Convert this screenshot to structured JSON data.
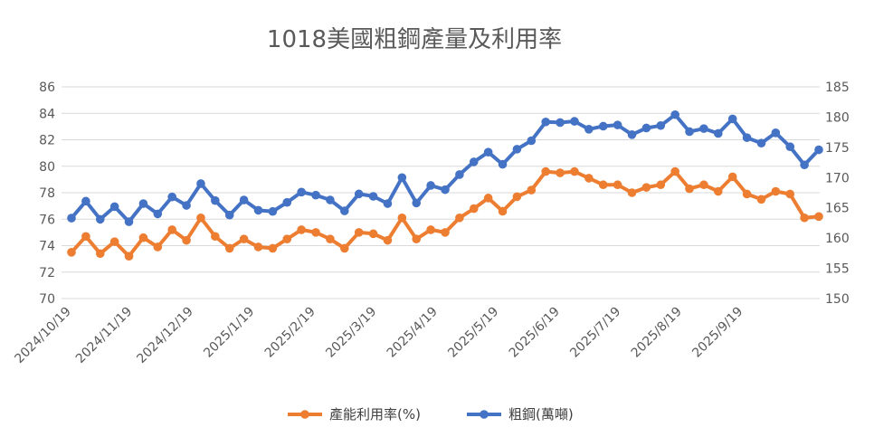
{
  "chart_data": {
    "type": "line",
    "title": "1018美國粗鋼產量及利用率",
    "x_tick_labels": [
      "2024/10/19",
      "2024/11/19",
      "2024/12/19",
      "2025/1/19",
      "2025/2/19",
      "2025/3/19",
      "2025/4/19",
      "2025/5/19",
      "2025/6/19",
      "2025/7/19",
      "2025/8/19",
      "2025/9/19"
    ],
    "y_left": {
      "ticks": [
        "70",
        "72",
        "74",
        "76",
        "78",
        "80",
        "82",
        "84",
        "86"
      ],
      "ylim": [
        70,
        86
      ]
    },
    "y_right": {
      "ticks": [
        "150",
        "155",
        "160",
        "165",
        "170",
        "175",
        "180",
        "185"
      ],
      "ylim": [
        150,
        185
      ]
    },
    "legend_position": "bottom",
    "grid": true,
    "series": [
      {
        "name": "產能利用率(%)",
        "axis": "left",
        "color": "#ED7D31",
        "values": [
          73.5,
          74.7,
          73.4,
          74.3,
          73.2,
          74.6,
          73.9,
          75.2,
          74.4,
          76.1,
          74.7,
          73.8,
          74.5,
          73.9,
          73.8,
          74.5,
          75.2,
          75.0,
          74.5,
          73.8,
          75.0,
          74.9,
          74.4,
          76.1,
          74.5,
          75.2,
          75.0,
          76.1,
          76.8,
          77.6,
          76.6,
          77.7,
          78.2,
          79.6,
          79.5,
          79.6,
          79.1,
          78.6,
          78.6,
          78.0,
          78.4,
          78.6,
          79.6,
          78.3,
          78.6,
          78.1,
          79.2,
          77.9,
          77.5,
          78.1,
          77.9,
          76.1,
          76.2
        ]
      },
      {
        "name": "粗鋼(萬噸)",
        "axis": "right",
        "color": "#4472C4",
        "values": [
          163.3,
          166.1,
          163.1,
          165.2,
          162.7,
          165.7,
          164.0,
          166.8,
          165.4,
          169.0,
          166.2,
          163.8,
          166.3,
          164.6,
          164.4,
          165.9,
          167.6,
          167.1,
          166.3,
          164.5,
          167.3,
          166.9,
          165.7,
          170.0,
          165.8,
          168.7,
          168.0,
          170.5,
          172.6,
          174.2,
          172.2,
          174.7,
          176.1,
          179.2,
          179.1,
          179.3,
          178.0,
          178.5,
          178.7,
          177.1,
          178.2,
          178.6,
          180.4,
          177.6,
          178.1,
          177.3,
          179.7,
          176.6,
          175.7,
          177.4,
          175.1,
          172.1,
          174.6
        ]
      }
    ]
  }
}
